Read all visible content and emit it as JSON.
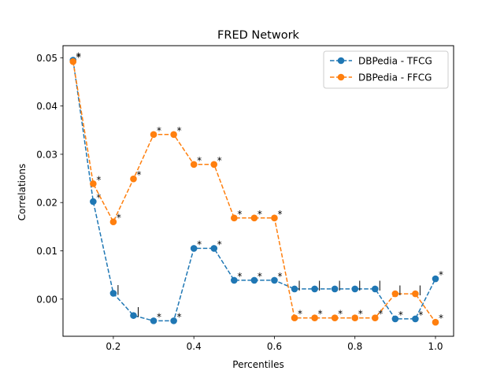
{
  "chart_data": {
    "type": "line",
    "title": "FRED Network",
    "xlabel": "Percentiles",
    "ylabel": "Correlations",
    "xlim": [
      0.075,
      1.045
    ],
    "ylim": [
      -0.0077,
      0.0525
    ],
    "xticks": [
      0.2,
      0.4,
      0.6,
      0.8,
      1.0
    ],
    "xtick_labels": [
      "0.2",
      "0.4",
      "0.6",
      "0.8",
      "1.0"
    ],
    "yticks": [
      0.0,
      0.01,
      0.02,
      0.03,
      0.04,
      0.05
    ],
    "ytick_labels": [
      "0.00",
      "0.01",
      "0.02",
      "0.03",
      "0.04",
      "0.05"
    ],
    "legend_position": "top-right",
    "grid": false,
    "x": [
      0.1,
      0.15,
      0.2,
      0.25,
      0.3,
      0.35,
      0.4,
      0.45,
      0.5,
      0.55,
      0.6,
      0.65,
      0.7,
      0.75,
      0.8,
      0.85,
      0.9,
      0.95,
      1.0
    ],
    "series": [
      {
        "name": "DBPedia - TFCG",
        "color": "#1f77b4",
        "linestyle": "dashed",
        "marker": "circle",
        "values": [
          0.0495,
          0.0202,
          0.0012,
          -0.0034,
          -0.0045,
          -0.0045,
          0.0105,
          0.0105,
          0.0039,
          0.0039,
          0.0039,
          0.0021,
          0.0021,
          0.0021,
          0.0021,
          0.0021,
          -0.0041,
          -0.0041,
          0.0042
        ],
        "annotations": [
          "*",
          "*",
          "|",
          "|",
          "*",
          "*",
          "*",
          "*",
          "*",
          "*",
          "*",
          "|",
          "|",
          "|",
          "|",
          "|",
          "*",
          "*",
          "*"
        ]
      },
      {
        "name": "DBPedia - FFCG",
        "color": "#ff7f0e",
        "linestyle": "dashed",
        "marker": "circle",
        "values": [
          0.0492,
          0.0239,
          0.016,
          0.0249,
          0.0341,
          0.0341,
          0.0279,
          0.0279,
          0.0168,
          0.0168,
          0.0168,
          -0.0039,
          -0.0039,
          -0.0039,
          -0.0039,
          -0.0039,
          0.0011,
          0.0011,
          -0.0048
        ],
        "annotations": [
          "*",
          "*",
          "*",
          "*",
          "*",
          "*",
          "*",
          "*",
          "*",
          "*",
          "*",
          "*",
          "*",
          "*",
          "*",
          "*",
          "|",
          "|",
          "*"
        ]
      }
    ]
  }
}
